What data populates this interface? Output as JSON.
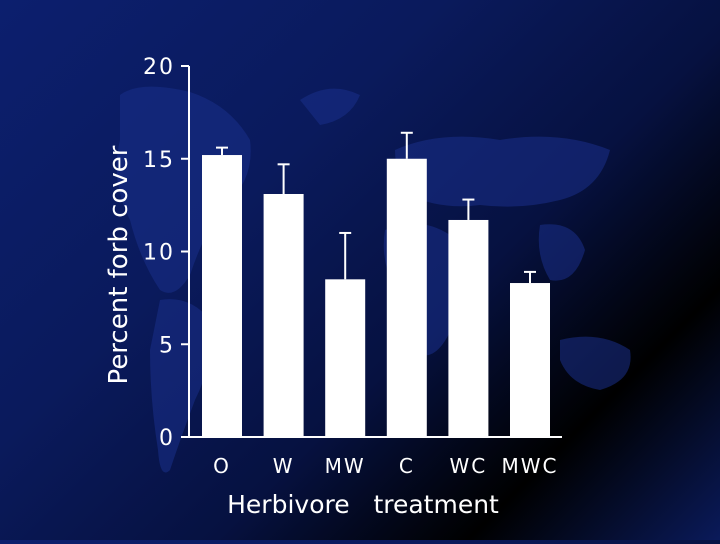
{
  "chart_data": {
    "type": "bar",
    "categories": [
      "O",
      "W",
      "MW",
      "C",
      "WC",
      "MWC"
    ],
    "values": [
      15.2,
      13.1,
      8.5,
      15.0,
      11.7,
      8.3
    ],
    "errors": [
      0.4,
      1.6,
      2.5,
      1.4,
      1.1,
      0.6
    ],
    "xlabel": "Herbivore   treatment",
    "ylabel": "Percent   forb   cover",
    "ylim": [
      0,
      20
    ],
    "yticks": [
      0,
      5,
      10,
      15,
      20
    ],
    "grid": false,
    "colors": {
      "bar": "#ffffff",
      "axis": "#ffffff",
      "text": "#ffffff"
    }
  }
}
